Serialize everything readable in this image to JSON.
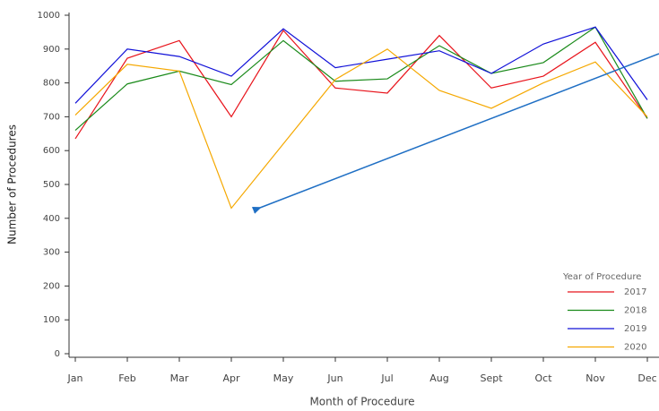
{
  "chart_data": {
    "type": "line",
    "y_label": "Number of Procedures",
    "x_label": "Month of Procedure",
    "categories": [
      "Jan",
      "Feb",
      "Mar",
      "Apr",
      "May",
      "Jun",
      "Jul",
      "Aug",
      "Sept",
      "Oct",
      "Nov",
      "Dec"
    ],
    "legend_title": "Year of Procedure",
    "legend": "bottom-right",
    "ylim": [
      0,
      1000
    ],
    "yticks": [
      0,
      100,
      200,
      300,
      400,
      500,
      600,
      700,
      800,
      900,
      1000
    ],
    "series": [
      {
        "name": "2017",
        "color": "#e8141c",
        "values": [
          635,
          873,
          925,
          700,
          955,
          785,
          770,
          940,
          785,
          820,
          920,
          695
        ]
      },
      {
        "name": "2018",
        "color": "#1a8a1a",
        "values": [
          660,
          797,
          835,
          795,
          925,
          805,
          812,
          910,
          828,
          860,
          965,
          695
        ]
      },
      {
        "name": "2019",
        "color": "#1010d8",
        "values": [
          740,
          900,
          878,
          820,
          960,
          845,
          870,
          895,
          828,
          915,
          965,
          750
        ]
      },
      {
        "name": "2020",
        "color": "#f5a800",
        "values": [
          705,
          855,
          835,
          430,
          620,
          810,
          900,
          778,
          725,
          800,
          862,
          700
        ]
      }
    ]
  }
}
